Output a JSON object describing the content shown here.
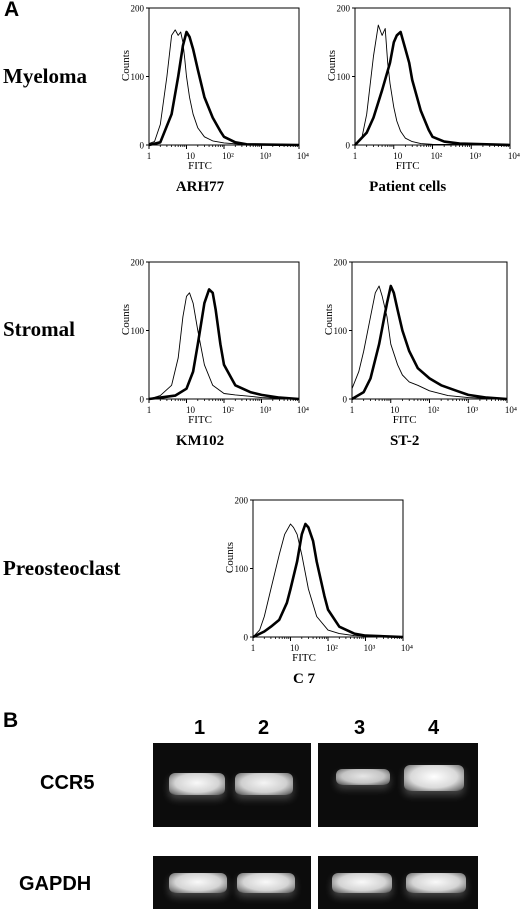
{
  "panel_a_letter": "A",
  "panel_b_letter": "B",
  "rows": [
    {
      "label": "Myeloma"
    },
    {
      "label": "Stromal"
    },
    {
      "label": "Preosteoclast"
    }
  ],
  "chart_data": [
    {
      "type": "line",
      "title": "ARH77",
      "xlabel": "FITC",
      "ylabel": "Counts",
      "xscale": "log",
      "xlim": [
        1,
        10000
      ],
      "ylim": [
        0,
        200
      ],
      "xticks": [
        "1",
        "10",
        "10²",
        "10³",
        "10⁴"
      ],
      "yticks": [
        "0",
        "100",
        "200"
      ],
      "series": [
        {
          "style": "thin",
          "x": [
            1,
            1.4,
            2,
            3,
            4,
            5,
            6,
            7,
            8,
            9,
            10,
            12,
            15,
            20,
            30,
            50,
            100,
            300,
            10000
          ],
          "y": [
            2,
            5,
            30,
            100,
            160,
            168,
            160,
            165,
            150,
            125,
            100,
            70,
            45,
            25,
            12,
            6,
            3,
            1,
            0
          ]
        },
        {
          "style": "thick",
          "x": [
            1,
            2,
            4,
            6,
            8,
            10,
            12,
            15,
            20,
            30,
            50,
            80,
            100,
            200,
            400,
            10000
          ],
          "y": [
            0,
            4,
            45,
            100,
            145,
            165,
            158,
            140,
            110,
            70,
            40,
            20,
            12,
            4,
            1,
            0
          ]
        }
      ]
    },
    {
      "type": "line",
      "title": "Patient cells",
      "xlabel": "FITC",
      "ylabel": "Counts",
      "xscale": "log",
      "xlim": [
        1,
        10000
      ],
      "ylim": [
        0,
        200
      ],
      "xticks": [
        "1",
        "10",
        "10²",
        "10³",
        "10⁴"
      ],
      "yticks": [
        "0",
        "100",
        "200"
      ],
      "series": [
        {
          "style": "thin",
          "x": [
            1,
            1.5,
            2,
            3,
            4,
            5,
            6,
            7,
            8,
            10,
            12,
            15,
            20,
            30,
            50,
            100,
            10000
          ],
          "y": [
            0,
            10,
            45,
            130,
            175,
            160,
            170,
            120,
            90,
            55,
            35,
            20,
            10,
            5,
            2,
            1,
            0
          ]
        },
        {
          "style": "thick",
          "x": [
            1,
            2,
            3,
            5,
            8,
            10,
            12,
            15,
            20,
            25,
            30,
            50,
            80,
            100,
            200,
            500,
            10000
          ],
          "y": [
            0,
            18,
            40,
            80,
            120,
            150,
            160,
            165,
            140,
            120,
            95,
            50,
            22,
            12,
            5,
            2,
            0
          ]
        }
      ]
    },
    {
      "type": "line",
      "title": "KM102",
      "xlabel": "FITC",
      "ylabel": "Counts",
      "xscale": "log",
      "xlim": [
        1,
        10000
      ],
      "ylim": [
        0,
        200
      ],
      "xticks": [
        "1",
        "10",
        "10²",
        "10³",
        "10⁴"
      ],
      "yticks": [
        "0",
        "100",
        "200"
      ],
      "series": [
        {
          "style": "thin",
          "x": [
            1,
            2,
            4,
            6,
            8,
            10,
            12,
            15,
            20,
            30,
            50,
            100,
            200,
            500,
            1000,
            10000
          ],
          "y": [
            0,
            5,
            20,
            60,
            120,
            150,
            155,
            140,
            100,
            50,
            20,
            8,
            6,
            4,
            2,
            0
          ]
        },
        {
          "style": "thick",
          "x": [
            1,
            2,
            5,
            10,
            15,
            20,
            30,
            40,
            50,
            60,
            80,
            100,
            200,
            500,
            1000,
            3000,
            10000
          ],
          "y": [
            0,
            2,
            5,
            15,
            40,
            80,
            140,
            160,
            155,
            130,
            80,
            50,
            20,
            10,
            6,
            2,
            0
          ]
        }
      ]
    },
    {
      "type": "line",
      "title": "ST-2",
      "xlabel": "FITC",
      "ylabel": "Counts",
      "xscale": "log",
      "xlim": [
        1,
        10000
      ],
      "ylim": [
        0,
        200
      ],
      "xticks": [
        "1",
        "10",
        "10²",
        "10³",
        "10⁴"
      ],
      "yticks": [
        "0",
        "100",
        "200"
      ],
      "series": [
        {
          "style": "thin",
          "x": [
            1,
            1.5,
            2,
            3,
            4,
            5,
            6,
            8,
            10,
            15,
            20,
            30,
            50,
            100,
            300,
            1000,
            10000
          ],
          "y": [
            15,
            40,
            70,
            120,
            155,
            165,
            150,
            120,
            80,
            50,
            35,
            25,
            20,
            12,
            5,
            2,
            0
          ]
        },
        {
          "style": "thick",
          "x": [
            1,
            2,
            3,
            5,
            8,
            10,
            12,
            15,
            20,
            30,
            50,
            100,
            200,
            500,
            1000,
            3000,
            10000
          ],
          "y": [
            0,
            10,
            30,
            80,
            140,
            165,
            155,
            130,
            100,
            70,
            45,
            30,
            20,
            12,
            6,
            2,
            0
          ]
        }
      ]
    },
    {
      "type": "line",
      "title": "C 7",
      "xlabel": "FITC",
      "ylabel": "Counts",
      "xscale": "log",
      "xlim": [
        1,
        10000
      ],
      "ylim": [
        0,
        200
      ],
      "xticks": [
        "1",
        "10",
        "10²",
        "10³",
        "10⁴"
      ],
      "yticks": [
        "0",
        "100",
        "200"
      ],
      "series": [
        {
          "style": "thin",
          "x": [
            1,
            1.5,
            2,
            3,
            5,
            7,
            10,
            12,
            15,
            20,
            30,
            50,
            100,
            200,
            500,
            10000
          ],
          "y": [
            0,
            10,
            30,
            70,
            120,
            150,
            165,
            160,
            150,
            120,
            70,
            30,
            10,
            5,
            2,
            0
          ]
        },
        {
          "style": "thick",
          "x": [
            1,
            2,
            3,
            5,
            8,
            10,
            15,
            20,
            25,
            30,
            40,
            50,
            80,
            100,
            200,
            500,
            1000,
            10000
          ],
          "y": [
            0,
            8,
            15,
            25,
            50,
            70,
            110,
            150,
            165,
            160,
            140,
            110,
            60,
            40,
            15,
            5,
            2,
            0
          ]
        }
      ]
    }
  ],
  "gel": {
    "rows": [
      {
        "label": "CCR5",
        "bands": [
          {
            "lane": "1",
            "intensity": 0.95
          },
          {
            "lane": "2",
            "intensity": 0.92
          },
          {
            "lane": "3",
            "intensity": 0.8
          },
          {
            "lane": "4",
            "intensity": 1.0
          }
        ]
      },
      {
        "label": "GAPDH",
        "bands": [
          {
            "lane": "1",
            "intensity": 0.95
          },
          {
            "lane": "2",
            "intensity": 0.95
          },
          {
            "lane": "3",
            "intensity": 0.95
          },
          {
            "lane": "4",
            "intensity": 0.95
          }
        ]
      }
    ],
    "lanes": [
      "1",
      "2",
      "3",
      "4"
    ]
  }
}
